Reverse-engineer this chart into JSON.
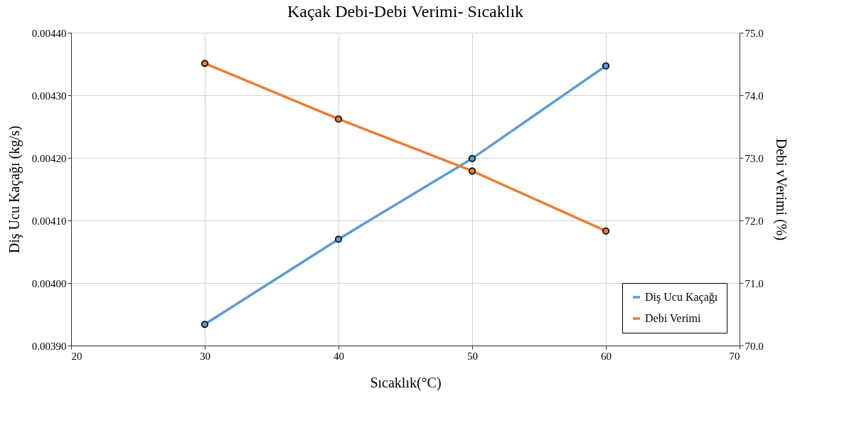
{
  "chart_data": {
    "type": "line",
    "title": "Kaçak Debi-Debi Verimi- Sıcaklık",
    "xlabel": "Sıcaklık(°C)",
    "ylabel": "Diş Ucu Kaçağı (kg/s)",
    "y2label": "Debi vVerimi (%)",
    "x": [
      30,
      40,
      50,
      60
    ],
    "series": [
      {
        "name": "Diş Ucu Kaçağı",
        "color": "#5b9bd5",
        "values": [
          0.003934,
          0.00407,
          0.004199,
          0.004347
        ]
      },
      {
        "name": "Debi Verimi",
        "color": "#ed7d31",
        "axis": "y2",
        "values": [
          74.51,
          73.62,
          72.79,
          71.83
        ]
      }
    ],
    "xlim": [
      20,
      70
    ],
    "xticks": [
      20,
      30,
      40,
      50,
      60,
      70
    ],
    "ylim": [
      0.0039,
      0.0044
    ],
    "yticks": [
      {
        "value": 0.0039,
        "label": "0.00390"
      },
      {
        "value": 0.004,
        "label": "0.00400"
      },
      {
        "value": 0.0041,
        "label": "0.00410"
      },
      {
        "value": 0.0042,
        "label": "0.00420"
      },
      {
        "value": 0.0043,
        "label": "0.00430"
      },
      {
        "value": 0.0044,
        "label": "0.00440"
      }
    ],
    "y2lim": [
      70,
      75
    ],
    "y2ticks": [
      {
        "value": 70,
        "label": "70.0"
      },
      {
        "value": 71,
        "label": "71.0"
      },
      {
        "value": 72,
        "label": "72.0"
      },
      {
        "value": 73,
        "label": "73.0"
      },
      {
        "value": 74,
        "label": "74.0"
      },
      {
        "value": 75,
        "label": "75.0"
      }
    ],
    "grid": true,
    "legend": "bottom right",
    "marker": "circle",
    "line_style": "solid"
  }
}
